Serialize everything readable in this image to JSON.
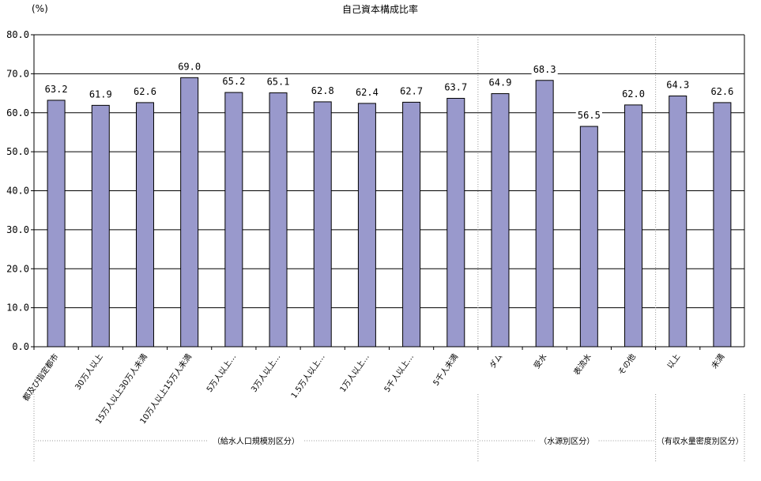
{
  "chart_data": {
    "type": "bar",
    "title": "自己資本構成比率",
    "unit": "(%)",
    "ylim": [
      0,
      80
    ],
    "yticks": [
      "0.0",
      "10.0",
      "20.0",
      "30.0",
      "40.0",
      "50.0",
      "60.0",
      "70.0",
      "80.0"
    ],
    "grid": true,
    "categories": [
      "都及び指定都市",
      "30万人以上",
      "15万人以上30万人未満",
      "10万人以上15万人未満",
      "5万人以上…",
      "3万人以上…",
      "1.5万人以上…",
      "1万人以上…",
      "5千人以上…",
      "5千人未満",
      "ダム",
      "受水",
      "表流水",
      "その他",
      "以上",
      "未満"
    ],
    "values": [
      63.2,
      61.9,
      62.6,
      69.0,
      65.2,
      65.1,
      62.8,
      62.4,
      62.7,
      63.7,
      64.9,
      68.3,
      56.5,
      62.0,
      64.3,
      62.6
    ],
    "value_labels": [
      "63.2",
      "61.9",
      "62.6",
      "69.0",
      "65.2",
      "65.1",
      "62.8",
      "62.4",
      "62.7",
      "63.7",
      "64.9",
      "68.3",
      "56.5",
      "62.0",
      "64.3",
      "62.6"
    ],
    "groups": [
      {
        "label": "（給水人口規模別区分）",
        "start": 0,
        "end": 9
      },
      {
        "label": "（水源別区分）",
        "start": 10,
        "end": 13
      },
      {
        "label": "（有収水量密度別区分）",
        "start": 14,
        "end": 15
      }
    ],
    "colors": {
      "bar_fill": "#9999cc",
      "bar_stroke": "#000000",
      "grid": "#000000",
      "separator": "#999999"
    }
  }
}
